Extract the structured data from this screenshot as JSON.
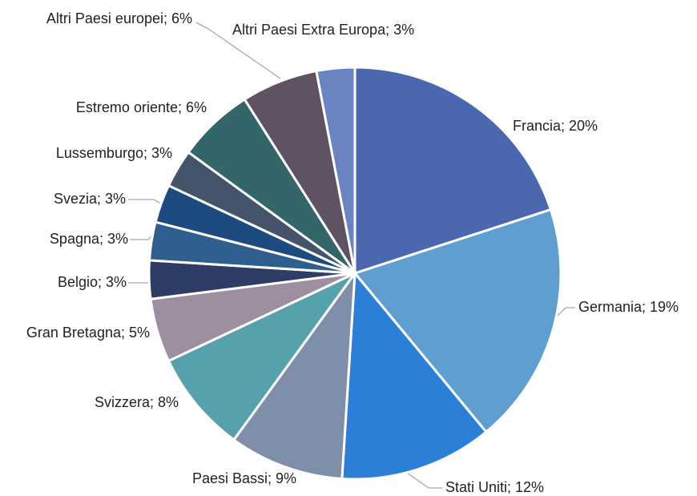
{
  "chart_data": {
    "type": "pie",
    "values": [
      20,
      19,
      12,
      9,
      8,
      5,
      3,
      3,
      3,
      3,
      6,
      6,
      3
    ],
    "value_labels": [
      "Francia; 20%",
      "Germania; 19%",
      "Stati Uniti; 12%",
      "Paesi Bassi; 9%",
      "Svizzera; 8%",
      "Gran Bretagna; 5%",
      "Belgio; 3%",
      "Spagna; 3%",
      "Svezia; 3%",
      "Lussemburgo; 3%",
      "Estremo oriente; 6%",
      "Altri Paesi europei; 6%",
      "Altri Paesi Extra Europa; 3%"
    ],
    "colors": [
      "#4a67b0",
      "#5f9ed1",
      "#2b7fd6",
      "#7f8fa9",
      "#56a2ac",
      "#9e8fa0",
      "#2e3d66",
      "#2e5f8e",
      "#1d4a7f",
      "#44546a",
      "#336668",
      "#5f5263",
      "#6a84c2"
    ]
  }
}
